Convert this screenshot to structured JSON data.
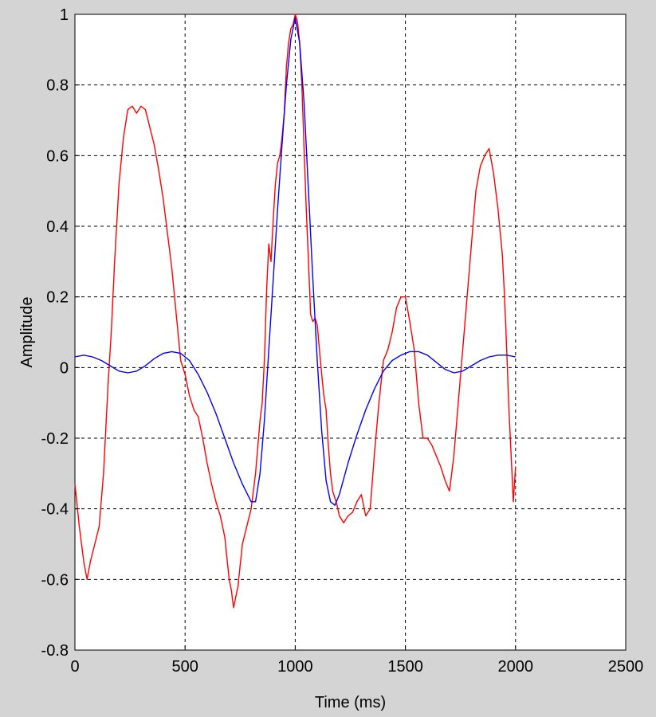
{
  "chart_data": {
    "type": "line",
    "title": "",
    "xlabel": "Time (ms)",
    "ylabel": "Amplitude",
    "xlim": [
      0,
      2500
    ],
    "ylim": [
      -0.8,
      1
    ],
    "xticks": [
      0,
      500,
      1000,
      1500,
      2000,
      2500
    ],
    "yticks": [
      -0.8,
      -0.6,
      -0.4,
      -0.2,
      0,
      0.2,
      0.4,
      0.6,
      0.8,
      1
    ],
    "xtick_labels": [
      "0",
      "500",
      "1000",
      "1500",
      "2000",
      "2500"
    ],
    "ytick_labels": [
      "-0.8",
      "-0.6",
      "-0.4",
      "-0.2",
      "0",
      "0.2",
      "0.4",
      "0.6",
      "0.8",
      "1"
    ],
    "grid": true,
    "colors": {
      "series1": "#ff0000",
      "series2": "#0000ff",
      "background": "#d4d4d4",
      "plot": "#ffffff"
    },
    "series": [
      {
        "color": "#ff0000",
        "x": [
          0,
          20,
          40,
          55,
          70,
          90,
          110,
          130,
          150,
          165,
          180,
          200,
          220,
          240,
          260,
          280,
          300,
          320,
          340,
          360,
          380,
          400,
          420,
          440,
          460,
          480,
          500,
          520,
          540,
          560,
          580,
          600,
          620,
          640,
          660,
          680,
          700,
          710,
          720,
          740,
          760,
          780,
          800,
          820,
          840,
          850,
          860,
          870,
          880,
          890,
          900,
          910,
          920,
          930,
          940,
          950,
          960,
          970,
          980,
          990,
          1000,
          1010,
          1020,
          1030,
          1040,
          1050,
          1060,
          1070,
          1080,
          1090,
          1100,
          1110,
          1120,
          1130,
          1140,
          1150,
          1160,
          1170,
          1180,
          1190,
          1200,
          1220,
          1240,
          1260,
          1280,
          1300,
          1320,
          1340,
          1360,
          1380,
          1400,
          1420,
          1440,
          1460,
          1480,
          1500,
          1520,
          1540,
          1560,
          1580,
          1600,
          1620,
          1640,
          1660,
          1680,
          1700,
          1720,
          1740,
          1760,
          1780,
          1800,
          1820,
          1840,
          1860,
          1880,
          1900,
          1920,
          1940,
          1950,
          1960,
          1970,
          1980,
          1990,
          2000
        ],
        "y": [
          -0.33,
          -0.45,
          -0.55,
          -0.6,
          -0.55,
          -0.5,
          -0.45,
          -0.3,
          -0.05,
          0.1,
          0.3,
          0.52,
          0.65,
          0.73,
          0.74,
          0.72,
          0.74,
          0.73,
          0.68,
          0.63,
          0.56,
          0.48,
          0.38,
          0.28,
          0.15,
          0.02,
          -0.02,
          -0.08,
          -0.12,
          -0.14,
          -0.2,
          -0.27,
          -0.33,
          -0.38,
          -0.42,
          -0.48,
          -0.6,
          -0.63,
          -0.68,
          -0.62,
          -0.5,
          -0.45,
          -0.4,
          -0.3,
          -0.15,
          -0.1,
          0.02,
          0.22,
          0.35,
          0.3,
          0.42,
          0.52,
          0.58,
          0.6,
          0.65,
          0.72,
          0.85,
          0.92,
          0.96,
          0.97,
          1.0,
          0.98,
          0.92,
          0.8,
          0.62,
          0.45,
          0.3,
          0.15,
          0.13,
          0.14,
          0.12,
          0.05,
          -0.02,
          -0.08,
          -0.12,
          -0.22,
          -0.3,
          -0.35,
          -0.37,
          -0.39,
          -0.42,
          -0.44,
          -0.42,
          -0.41,
          -0.38,
          -0.36,
          -0.42,
          -0.4,
          -0.24,
          -0.1,
          0.02,
          0.05,
          0.1,
          0.17,
          0.2,
          0.2,
          0.13,
          0.05,
          -0.1,
          -0.2,
          -0.2,
          -0.22,
          -0.25,
          -0.28,
          -0.32,
          -0.35,
          -0.25,
          -0.1,
          0.05,
          0.2,
          0.35,
          0.5,
          0.57,
          0.6,
          0.62,
          0.55,
          0.45,
          0.32,
          0.2,
          0.05,
          -0.12,
          -0.25,
          -0.38,
          -0.28
        ]
      },
      {
        "color": "#0000ff",
        "x": [
          0,
          40,
          80,
          120,
          160,
          200,
          240,
          280,
          320,
          360,
          400,
          440,
          480,
          520,
          560,
          600,
          640,
          680,
          720,
          760,
          800,
          820,
          840,
          860,
          880,
          900,
          920,
          940,
          960,
          980,
          1000,
          1020,
          1040,
          1060,
          1080,
          1100,
          1120,
          1140,
          1160,
          1180,
          1200,
          1240,
          1280,
          1320,
          1360,
          1400,
          1440,
          1480,
          1520,
          1560,
          1600,
          1640,
          1680,
          1720,
          1760,
          1800,
          1840,
          1880,
          1920,
          1960,
          2000
        ],
        "y": [
          0.03,
          0.035,
          0.03,
          0.02,
          0.005,
          -0.01,
          -0.015,
          -0.01,
          0.005,
          0.025,
          0.04,
          0.045,
          0.04,
          0.02,
          -0.02,
          -0.07,
          -0.13,
          -0.2,
          -0.27,
          -0.33,
          -0.38,
          -0.38,
          -0.3,
          -0.15,
          0.05,
          0.25,
          0.45,
          0.63,
          0.8,
          0.93,
          0.99,
          0.92,
          0.75,
          0.5,
          0.25,
          0.02,
          -0.18,
          -0.32,
          -0.38,
          -0.39,
          -0.36,
          -0.27,
          -0.19,
          -0.12,
          -0.06,
          -0.01,
          0.02,
          0.035,
          0.045,
          0.045,
          0.035,
          0.015,
          -0.005,
          -0.015,
          -0.01,
          0.005,
          0.02,
          0.03,
          0.035,
          0.035,
          0.03
        ]
      }
    ]
  }
}
